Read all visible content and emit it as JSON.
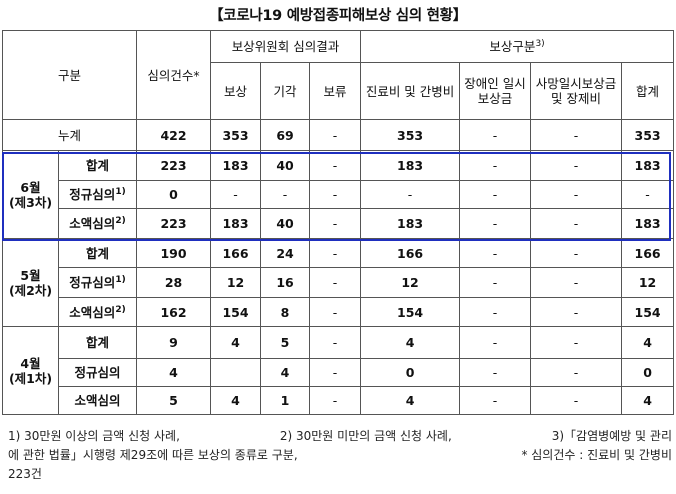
{
  "title": "【코로나19 예방접종피해보상 심의 현황】",
  "header": {
    "category": "구분",
    "count": "심의건수*",
    "committee_group": "보상위원회 심의결과",
    "comp": "보상",
    "reject": "기각",
    "hold": "보류",
    "type_group": "보상구분",
    "type_group_note": "3)",
    "medical": "진료비 및 간병비",
    "disability": "장애인 일시보상금",
    "death": "사망일시보상금 및 장제비",
    "total": "합계"
  },
  "rows": {
    "cumulative": {
      "label": "누계",
      "count": "422",
      "comp": "353",
      "reject": "69",
      "hold": "-",
      "medical": "353",
      "disability": "-",
      "death": "-",
      "total": "353"
    },
    "jun": {
      "group": "6월\n(제3차)",
      "sum": {
        "label": "합계",
        "count": "223",
        "comp": "183",
        "reject": "40",
        "hold": "-",
        "medical": "183",
        "disability": "-",
        "death": "-",
        "total": "183"
      },
      "regular": {
        "label": "정규심의",
        "note": "1)",
        "count": "0",
        "comp": "-",
        "reject": "-",
        "hold": "-",
        "medical": "-",
        "disability": "-",
        "death": "-",
        "total": "-"
      },
      "small": {
        "label": "소액심의",
        "note": "2)",
        "count": "223",
        "comp": "183",
        "reject": "40",
        "hold": "-",
        "medical": "183",
        "disability": "-",
        "death": "-",
        "total": "183"
      }
    },
    "may": {
      "group": "5월\n(제2차)",
      "sum": {
        "label": "합계",
        "count": "190",
        "comp": "166",
        "reject": "24",
        "hold": "-",
        "medical": "166",
        "disability": "-",
        "death": "-",
        "total": "166"
      },
      "regular": {
        "label": "정규심의",
        "note": "1)",
        "count": "28",
        "comp": "12",
        "reject": "16",
        "hold": "-",
        "medical": "12",
        "disability": "-",
        "death": "-",
        "total": "12"
      },
      "small": {
        "label": "소액심의",
        "note": "2)",
        "count": "162",
        "comp": "154",
        "reject": "8",
        "hold": "-",
        "medical": "154",
        "disability": "-",
        "death": "-",
        "total": "154"
      }
    },
    "apr": {
      "group": "4월\n(제1차)",
      "sum": {
        "label": "합계",
        "count": "9",
        "comp": "4",
        "reject": "5",
        "hold": "-",
        "medical": "4",
        "disability": "-",
        "death": "-",
        "total": "4"
      },
      "regular": {
        "label": "정규심의",
        "count": "4",
        "comp": "",
        "reject": "4",
        "hold": "-",
        "medical": "0",
        "disability": "-",
        "death": "-",
        "total": "0"
      },
      "small": {
        "label": "소액심의",
        "count": "5",
        "comp": "4",
        "reject": "1",
        "hold": "-",
        "medical": "4",
        "disability": "-",
        "death": "-",
        "total": "4"
      }
    }
  },
  "notes": {
    "n1": "1) 30만원 이상의 금액 신청 사례,",
    "n2": "2) 30만원 미만의 금액 신청 사례,",
    "n3": "3)「감염병예방 및 관리",
    "n4": "에 관한 법률」시행령 제29조에 따른 보상의 종류로 구분,",
    "n5": "* 심의건수 : 진료비 및 간병비",
    "n6": "223건"
  }
}
